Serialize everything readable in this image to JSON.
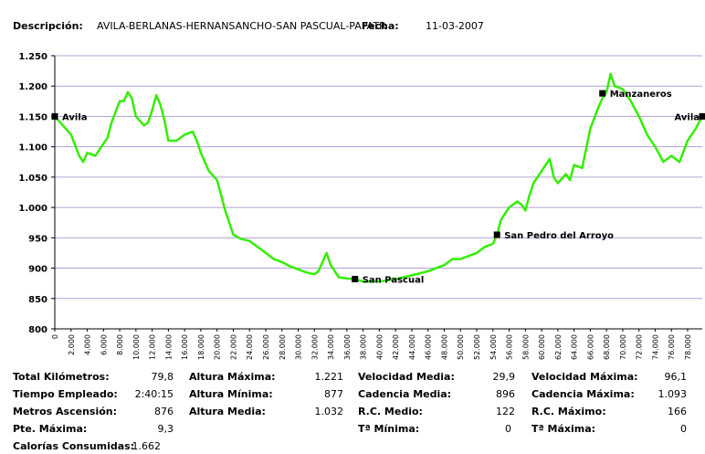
{
  "header": {
    "desc_label": "Descripción:",
    "desc_value": "AVILA-BERLANAS-HERNANSANCHO-SAN PASCUAL-PAPATR",
    "date_label": "Fecha:",
    "date_value": "11-03-2007"
  },
  "colors": {
    "line": "#33ee00",
    "grid": "#b4a0d8",
    "axis": "#000000",
    "marker": "#000000"
  },
  "chart_data": {
    "type": "line",
    "title": "",
    "xlabel": "",
    "ylabel": "",
    "xlim": [
      0,
      79.8
    ],
    "ylim": [
      800,
      1250
    ],
    "yticks": [
      800,
      850,
      900,
      950,
      1000,
      1050,
      1100,
      1150,
      1200,
      1250
    ],
    "ytick_labels": [
      "800",
      "850",
      "900",
      "950",
      "1.000",
      "1.050",
      "1.100",
      "1.150",
      "1.200",
      "1.250"
    ],
    "xticks": [
      0,
      2,
      4,
      6,
      8,
      10,
      12,
      14,
      16,
      18,
      20,
      22,
      24,
      26,
      28,
      30,
      32,
      34,
      36,
      38,
      40,
      42,
      44,
      46,
      48,
      50,
      52,
      54,
      56,
      58,
      60,
      62,
      64,
      66,
      68,
      70,
      72,
      74,
      76,
      78
    ],
    "xtick_labels": [
      "0",
      "2.000",
      "4.000",
      "6.000",
      "8.000",
      "10.000",
      "12.000",
      "14.000",
      "16.000",
      "18.000",
      "20.000",
      "22.000",
      "24.000",
      "26.000",
      "28.000",
      "30.000",
      "32.000",
      "34.000",
      "36.000",
      "38.000",
      "40.000",
      "42.000",
      "44.000",
      "46.000",
      "48.000",
      "50.000",
      "52.000",
      "54.000",
      "56.000",
      "58.000",
      "60.000",
      "62.000",
      "64.000",
      "66.000",
      "68.000",
      "70.000",
      "72.000",
      "74.000",
      "76.000",
      "78.000"
    ],
    "grid": true,
    "series": [
      {
        "x": [
          0,
          1,
          2,
          3,
          3.5,
          4,
          5,
          6,
          6.5,
          7,
          8,
          8.5,
          9,
          9.5,
          10,
          11,
          11.5,
          12,
          12.5,
          13,
          13.5,
          14,
          15,
          16,
          17,
          17.5,
          18,
          19,
          20,
          21,
          22,
          23,
          24,
          25,
          26,
          27,
          28,
          29,
          30,
          31,
          32,
          32.5,
          33,
          33.5,
          34,
          35,
          36,
          37,
          38,
          40,
          42,
          44,
          46,
          48,
          49,
          50,
          52,
          53,
          54,
          54.5,
          55,
          56,
          57,
          57.5,
          58,
          58.5,
          59,
          60,
          61,
          61.5,
          62,
          63,
          63.5,
          64,
          65,
          66,
          67,
          67.5,
          68,
          68.5,
          69,
          70,
          71,
          72,
          73,
          74,
          75,
          76,
          77,
          78,
          78.5,
          79,
          79.8
        ],
        "y": [
          1150,
          1135,
          1120,
          1085,
          1075,
          1090,
          1085,
          1105,
          1115,
          1140,
          1175,
          1175,
          1190,
          1180,
          1150,
          1135,
          1140,
          1160,
          1185,
          1170,
          1145,
          1110,
          1110,
          1120,
          1125,
          1110,
          1090,
          1060,
          1045,
          995,
          955,
          948,
          945,
          935,
          925,
          915,
          910,
          903,
          898,
          893,
          890,
          895,
          910,
          925,
          905,
          885,
          883,
          882,
          878,
          878,
          882,
          888,
          895,
          905,
          915,
          915,
          925,
          935,
          940,
          955,
          980,
          1000,
          1010,
          1005,
          995,
          1020,
          1040,
          1060,
          1080,
          1050,
          1040,
          1055,
          1045,
          1070,
          1065,
          1130,
          1165,
          1180,
          1190,
          1220,
          1200,
          1195,
          1175,
          1150,
          1120,
          1100,
          1075,
          1085,
          1075,
          1110,
          1120,
          1130,
          1150
        ]
      }
    ],
    "annotations": [
      {
        "x": 0,
        "y": 1150,
        "label": "Avila"
      },
      {
        "x": 37,
        "y": 882,
        "label": "San Pascual"
      },
      {
        "x": 54.5,
        "y": 955,
        "label": "San Pedro del Arroyo"
      },
      {
        "x": 67.5,
        "y": 1188,
        "label": "Manzaneros"
      },
      {
        "x": 79.8,
        "y": 1150,
        "label": "Avila"
      }
    ]
  },
  "stats": [
    {
      "label": "Total Kilómetros:",
      "value": "79,8"
    },
    {
      "label": "Tiempo Empleado:",
      "value": "2:40:15"
    },
    {
      "label": "Metros Ascensión:",
      "value": "876"
    },
    {
      "label": "Pte. Máxima:",
      "value": "9,3"
    },
    {
      "label": "Calorías Consumidas:",
      "value": "1.662"
    },
    {
      "label": "Altura Máxima:",
      "value": "1.221"
    },
    {
      "label": "Altura Mínima:",
      "value": "877"
    },
    {
      "label": "Altura Media:",
      "value": "1.032"
    },
    {
      "label": "Velocidad Media:",
      "value": "29,9"
    },
    {
      "label": "Cadencia Media:",
      "value": "896"
    },
    {
      "label": "R.C. Medio:",
      "value": "122"
    },
    {
      "label": "Tª Mínima:",
      "value": "0"
    },
    {
      "label": "Velocidad Máxima:",
      "value": "96,1"
    },
    {
      "label": "Cadencia Máxima:",
      "value": "1.093"
    },
    {
      "label": "R.C.  Máximo:",
      "value": "166"
    },
    {
      "label": "Tª Máxima:",
      "value": "0"
    }
  ]
}
